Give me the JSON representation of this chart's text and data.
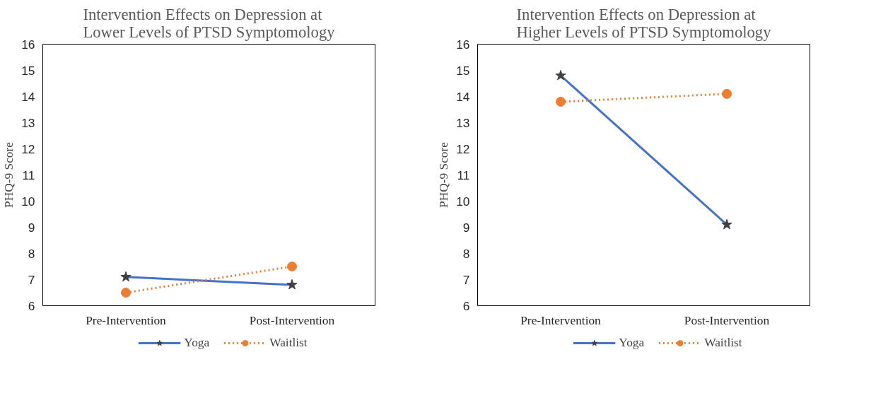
{
  "chart_data": [
    {
      "type": "line",
      "title": "Intervention Effects on Depression at\nLower Levels of PTSD Symptomology",
      "ylabel": "PHQ-9 Score",
      "categories": [
        "Pre-Intervention",
        "Post-Intervention"
      ],
      "ylim": [
        6,
        16
      ],
      "yticks": [
        6,
        7,
        8,
        9,
        10,
        11,
        12,
        13,
        14,
        15,
        16
      ],
      "grid": false,
      "legend": "bottom",
      "series": [
        {
          "name": "Yoga",
          "color": "#4472c4",
          "values": [
            7.1,
            6.8
          ],
          "marker": "star",
          "line_style": "solid"
        },
        {
          "name": "Waitlist",
          "color": "#ed7d31",
          "values": [
            6.5,
            7.5
          ],
          "marker": "circle",
          "line_style": "dotted"
        }
      ]
    },
    {
      "type": "line",
      "title": "Intervention Effects on Depression at\nHigher Levels of PTSD Symptomology",
      "ylabel": "PHQ-9 Score",
      "categories": [
        "Pre-Intervention",
        "Post-Intervention"
      ],
      "ylim": [
        6,
        16
      ],
      "yticks": [
        6,
        7,
        8,
        9,
        10,
        11,
        12,
        13,
        14,
        15,
        16
      ],
      "grid": false,
      "legend": "bottom",
      "series": [
        {
          "name": "Yoga",
          "color": "#4472c4",
          "values": [
            14.8,
            9.1
          ],
          "marker": "star",
          "line_style": "solid"
        },
        {
          "name": "Waitlist",
          "color": "#ed7d31",
          "values": [
            13.8,
            14.1
          ],
          "marker": "circle",
          "line_style": "dotted"
        }
      ]
    }
  ]
}
